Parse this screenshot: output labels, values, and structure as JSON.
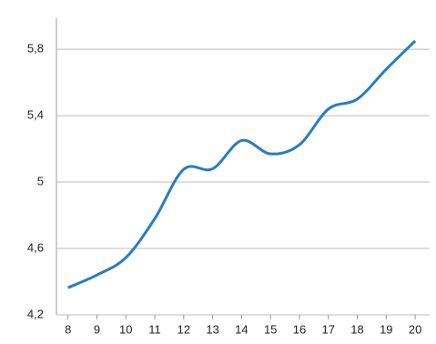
{
  "chart_data": {
    "type": "line",
    "x": [
      8,
      9,
      10,
      11,
      12,
      13,
      14,
      15,
      16,
      17,
      18,
      19,
      20
    ],
    "series": [
      {
        "color": "#2b7bc4",
        "values": [
          4.364,
          4.44,
          4.545,
          4.78,
          5.077,
          5.08,
          5.25,
          5.17,
          5.225,
          5.44,
          5.5,
          5.68,
          5.85
        ]
      }
    ],
    "xlim": [
      7.6,
      20.5
    ],
    "xticks": [
      8,
      9,
      10,
      11,
      12,
      13,
      14,
      15,
      16,
      17,
      18,
      19,
      20
    ],
    "ylim": [
      4.2,
      5.85
    ],
    "yticks": [
      {
        "value": 4.2,
        "label": "4,2"
      },
      {
        "value": 4.6,
        "label": "4,6"
      },
      5,
      {
        "value": 5.4,
        "label": "5,4"
      },
      {
        "value": 5.8,
        "label": "5,8"
      }
    ],
    "grid": true
  }
}
